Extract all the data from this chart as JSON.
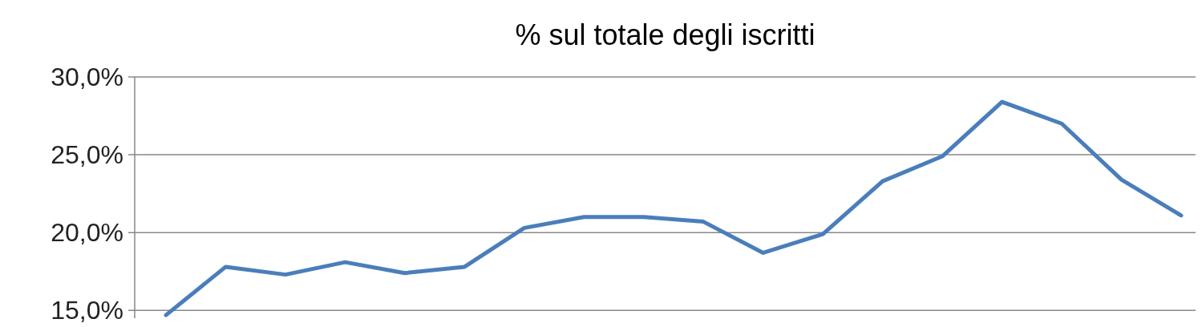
{
  "chart_data": {
    "type": "line",
    "title": "% sul totale degli iscritti",
    "categories": [
      null,
      null,
      null,
      null,
      null,
      null,
      null,
      null,
      null,
      null,
      null,
      null,
      null,
      null,
      null,
      null,
      null,
      null
    ],
    "series": [
      {
        "color": "#4a7ebb",
        "values": [
          14.7,
          17.8,
          17.3,
          18.1,
          17.4,
          17.8,
          20.3,
          21.0,
          21.0,
          20.7,
          18.7,
          19.9,
          23.3,
          24.9,
          28.4,
          27.0,
          23.4,
          21.1
        ]
      }
    ],
    "ylim": [
      14.5,
      30
    ],
    "yticks": [
      {
        "value": 15,
        "label": "15,0%"
      },
      {
        "value": 20,
        "label": "20,0%"
      },
      {
        "value": 25,
        "label": "25,0%"
      },
      {
        "value": 30,
        "label": "30,0%"
      }
    ],
    "grid": "y",
    "marker": "none",
    "line_style": "solid"
  }
}
